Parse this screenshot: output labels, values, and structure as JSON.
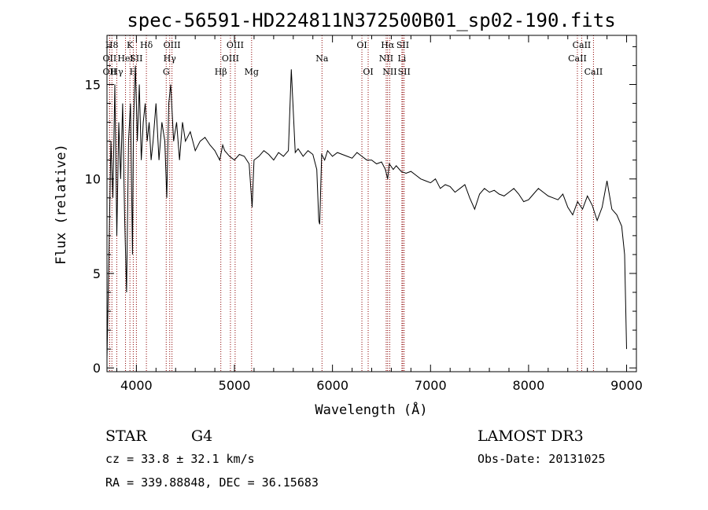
{
  "chart_data": {
    "type": "line",
    "title": "spec-56591-HD224811N372500B01_sp02-190.fits",
    "xlabel": "Wavelength (Å)",
    "ylabel": "Flux (relative)",
    "xlim": [
      3700,
      9100
    ],
    "ylim": [
      -0.2,
      17.6
    ],
    "xticks": [
      4000,
      5000,
      6000,
      7000,
      8000,
      9000
    ],
    "yticks": [
      0,
      5,
      10,
      15
    ],
    "series": [
      {
        "name": "flux",
        "x": [
          3700,
          3720,
          3740,
          3760,
          3780,
          3800,
          3820,
          3840,
          3860,
          3880,
          3900,
          3920,
          3940,
          3960,
          3970,
          3990,
          4010,
          4030,
          4050,
          4070,
          4090,
          4110,
          4130,
          4150,
          4170,
          4200,
          4230,
          4260,
          4290,
          4310,
          4330,
          4350,
          4380,
          4410,
          4440,
          4470,
          4500,
          4550,
          4600,
          4650,
          4700,
          4750,
          4800,
          4850,
          4880,
          4900,
          4950,
          5000,
          5050,
          5100,
          5150,
          5180,
          5200,
          5250,
          5300,
          5350,
          5400,
          5450,
          5500,
          5550,
          5580,
          5620,
          5650,
          5700,
          5750,
          5800,
          5840,
          5860,
          5870,
          5890,
          5920,
          5950,
          6000,
          6050,
          6100,
          6150,
          6200,
          6250,
          6300,
          6350,
          6400,
          6450,
          6500,
          6540,
          6563,
          6580,
          6620,
          6650,
          6700,
          6750,
          6800,
          6850,
          6900,
          6950,
          7000,
          7050,
          7100,
          7150,
          7200,
          7250,
          7300,
          7350,
          7400,
          7450,
          7500,
          7550,
          7600,
          7650,
          7700,
          7750,
          7800,
          7850,
          7900,
          7950,
          8000,
          8050,
          8100,
          8150,
          8200,
          8250,
          8300,
          8350,
          8400,
          8450,
          8500,
          8550,
          8600,
          8650,
          8700,
          8750,
          8800,
          8850,
          8900,
          8950,
          8980,
          9000
        ],
        "values": [
          0.5,
          6,
          12,
          9,
          15,
          7,
          13,
          10,
          14,
          8,
          4,
          12,
          14,
          6,
          13,
          16,
          12,
          15,
          11,
          13,
          14,
          12,
          13,
          11,
          12,
          14,
          11,
          13,
          12,
          9,
          14,
          15,
          12,
          13,
          11,
          13,
          12,
          12.5,
          11.5,
          12,
          12.2,
          11.8,
          11.5,
          11,
          11.8,
          11.5,
          11.2,
          11,
          11.3,
          11.2,
          10.8,
          8.5,
          11,
          11.2,
          11.5,
          11.3,
          11,
          11.4,
          11.2,
          11.5,
          15.8,
          11.4,
          11.6,
          11.2,
          11.5,
          11.3,
          10.5,
          7.8,
          7.6,
          11.3,
          11,
          11.5,
          11.2,
          11.4,
          11.3,
          11.2,
          11.1,
          11.4,
          11.2,
          11,
          11,
          10.8,
          10.9,
          10.5,
          10,
          10.8,
          10.5,
          10.7,
          10.4,
          10.3,
          10.4,
          10.2,
          10,
          9.9,
          9.8,
          10,
          9.5,
          9.7,
          9.6,
          9.3,
          9.5,
          9.7,
          9,
          8.4,
          9.2,
          9.5,
          9.3,
          9.4,
          9.2,
          9.1,
          9.3,
          9.5,
          9.2,
          8.8,
          8.9,
          9.2,
          9.5,
          9.3,
          9.1,
          9,
          8.9,
          9.2,
          8.5,
          8.1,
          8.8,
          8.4,
          9.1,
          8.6,
          7.8,
          8.5,
          9.9,
          8.4,
          8.1,
          7.5,
          6,
          1
        ]
      }
    ],
    "spectral_lines": [
      {
        "label": "H8",
        "x": 3750,
        "row": 1
      },
      {
        "label": "OII",
        "x": 3727,
        "row": 2
      },
      {
        "label": "OII",
        "x": 3727,
        "row": 3
      },
      {
        "label": "K",
        "x": 3934,
        "row": 1
      },
      {
        "label": "HeI",
        "x": 3889,
        "row": 2
      },
      {
        "label": "Hγ",
        "x": 3800,
        "row": 3
      },
      {
        "label": "SII",
        "x": 4000,
        "row": 2
      },
      {
        "label": "H",
        "x": 3968,
        "row": 3
      },
      {
        "label": "Hδ",
        "x": 4102,
        "row": 1
      },
      {
        "label": "OIII",
        "x": 4363,
        "row": 1
      },
      {
        "label": "Hγ",
        "x": 4340,
        "row": 2
      },
      {
        "label": "G",
        "x": 4304,
        "row": 3
      },
      {
        "label": "OIII",
        "x": 5007,
        "row": 1
      },
      {
        "label": "OIII",
        "x": 4959,
        "row": 2
      },
      {
        "label": "Hβ",
        "x": 4861,
        "row": 3
      },
      {
        "label": "Mg",
        "x": 5175,
        "row": 3
      },
      {
        "label": "Na",
        "x": 5893,
        "row": 2
      },
      {
        "label": "OI",
        "x": 6300,
        "row": 1
      },
      {
        "label": "OI",
        "x": 6364,
        "row": 3
      },
      {
        "label": "Hα",
        "x": 6563,
        "row": 1
      },
      {
        "label": "SII",
        "x": 6717,
        "row": 1
      },
      {
        "label": "NII",
        "x": 6548,
        "row": 2
      },
      {
        "label": "Li",
        "x": 6708,
        "row": 2
      },
      {
        "label": "NII",
        "x": 6584,
        "row": 3
      },
      {
        "label": "SII",
        "x": 6731,
        "row": 3
      },
      {
        "label": "CaII",
        "x": 8542,
        "row": 1
      },
      {
        "label": "CaII",
        "x": 8498,
        "row": 2
      },
      {
        "label": "CaII",
        "x": 8662,
        "row": 3
      }
    ]
  },
  "info": {
    "object_class": "STAR",
    "subclass": "G4",
    "survey": "LAMOST DR3",
    "cz": "cz = 33.8 ± 32.1 km/s",
    "obs_date": "Obs-Date: 20131025",
    "coords": "RA = 339.88848, DEC =  36.15683"
  },
  "colors": {
    "line": "#000000",
    "marker": "#8b0000"
  }
}
